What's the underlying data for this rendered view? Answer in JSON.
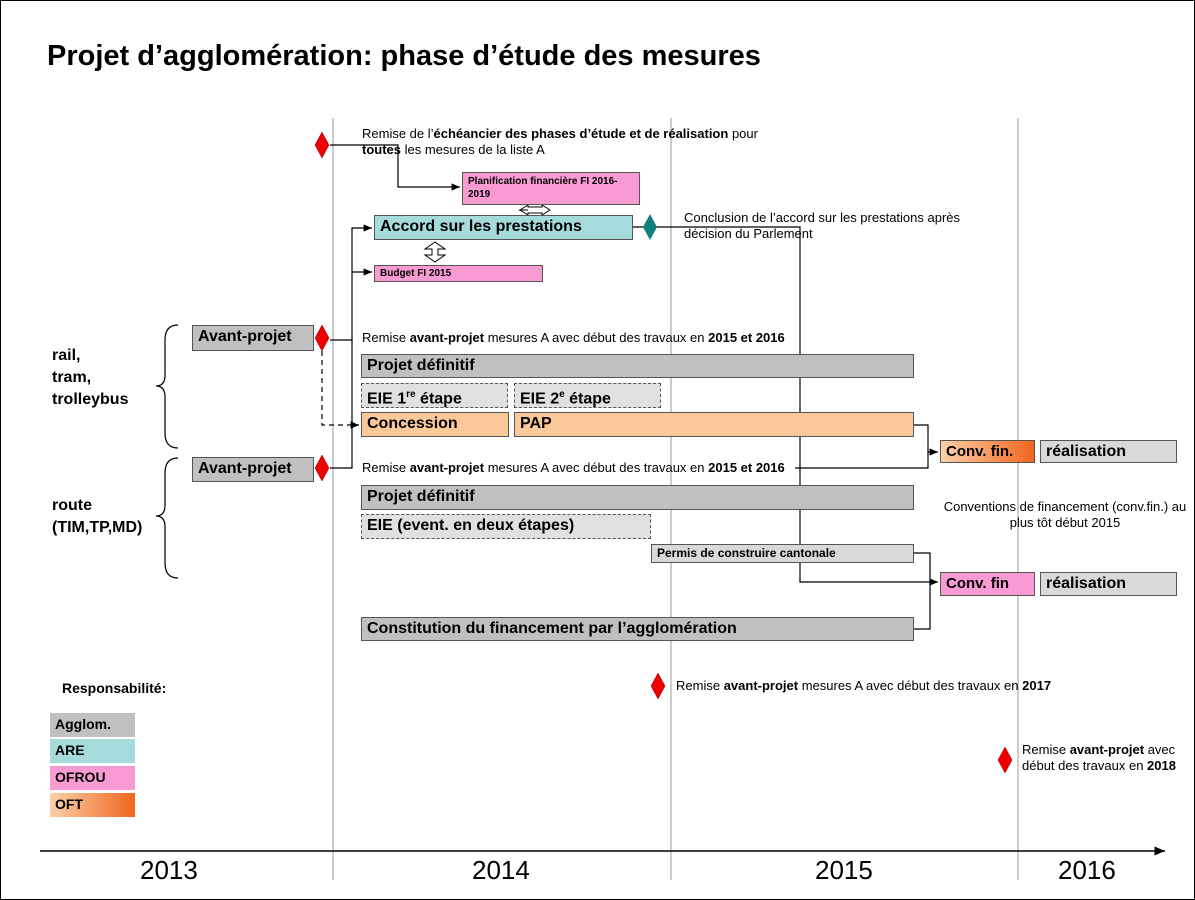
{
  "title": "Projet d’agglomération: phase d’étude des mesures",
  "timeline": {
    "years": [
      "2013",
      "2014",
      "2015",
      "2016"
    ]
  },
  "groups": [
    {
      "label_lines": [
        "rail,",
        "tram,",
        "trolleybus"
      ]
    },
    {
      "label_lines": [
        "route",
        "(TIM,TP,MD)"
      ]
    }
  ],
  "bars": [
    {
      "label": "Planification financière FI 2016-2019"
    },
    {
      "label": "Accord sur les prestations"
    },
    {
      "label": "Budget FI 2015"
    },
    {
      "label": "Avant-projet"
    },
    {
      "label": "Projet définitif"
    },
    {
      "parts": [
        "EIE 1",
        "re",
        " étape"
      ]
    },
    {
      "parts": [
        "EIE 2",
        "e",
        " étape"
      ]
    },
    {
      "label": "Concession"
    },
    {
      "label": "PAP"
    },
    {
      "label": "Conv. fin."
    },
    {
      "label": "réalisation"
    },
    {
      "label": "Avant-projet"
    },
    {
      "label": "Projet définitif"
    },
    {
      "label": "EIE (event. en deux étapes)"
    },
    {
      "label": "Permis de construire cantonale"
    },
    {
      "label": "Conv. fin"
    },
    {
      "label": "réalisation"
    },
    {
      "label": "Constitution du financement par l’agglomération"
    }
  ],
  "annotations": [
    {
      "parts": [
        "Remise de l’",
        "échéancier des phases d’étude et de réalisation",
        " pour ",
        "toutes",
        " les mesures de la liste A"
      ]
    },
    {
      "parts": [
        "Conclusion de l’accord sur les prestations après décision du Parlement"
      ]
    },
    {
      "parts": [
        "Remise ",
        "avant-projet",
        " mesures A avec début des travaux en ",
        "2015 et 2016"
      ]
    },
    {
      "parts": [
        "Remise ",
        "avant-projet",
        " mesures A avec début des travaux en ",
        "2015 et 2016"
      ]
    },
    {
      "parts": [
        "Conventions de financement (conv.fin.) au plus tôt début 2015"
      ]
    },
    {
      "parts": [
        "Remise ",
        "avant-projet",
        " mesures A avec début des travaux en ",
        "2017"
      ]
    },
    {
      "parts": [
        "Remise ",
        "avant-projet",
        " avec début des travaux en ",
        "2018"
      ]
    }
  ],
  "legend": {
    "title": "Responsabilité:",
    "items": [
      "Agglom.",
      "ARE",
      "OFROU",
      "OFT"
    ]
  }
}
